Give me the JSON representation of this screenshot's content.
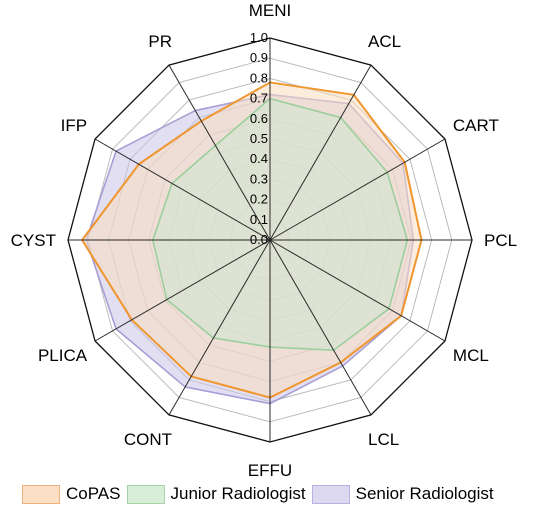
{
  "chart_data": {
    "type": "radar",
    "axes": [
      "MENI",
      "ACL",
      "CART",
      "PCL",
      "MCL",
      "LCL",
      "EFFU",
      "CONT",
      "PLICA",
      "CYST",
      "IFP",
      "PR"
    ],
    "radial_ticks": [
      "0.0",
      "0.1",
      "0.2",
      "0.3",
      "0.4",
      "0.5",
      "0.6",
      "0.7",
      "0.8",
      "0.9",
      "1.0"
    ],
    "rlim": [
      0,
      1
    ],
    "grid": true,
    "legend_position": "bottom",
    "series": [
      {
        "name": "Senior Radiologist",
        "values": [
          0.72,
          0.78,
          0.76,
          0.71,
          0.75,
          0.72,
          0.81,
          0.84,
          0.88,
          0.91,
          0.88,
          0.74
        ],
        "fill": "#c9c4e6",
        "stroke": "#a89fd6"
      },
      {
        "name": "CoPAS",
        "values": [
          0.78,
          0.83,
          0.77,
          0.75,
          0.75,
          0.7,
          0.78,
          0.78,
          0.79,
          0.93,
          0.75,
          0.68
        ],
        "fill": "#f9dcc0",
        "stroke": "#f0962e"
      },
      {
        "name": "Junior Radiologist",
        "values": [
          0.7,
          0.7,
          0.67,
          0.68,
          0.68,
          0.63,
          0.53,
          0.56,
          0.59,
          0.58,
          0.56,
          0.54
        ],
        "fill": "#cfe6cf",
        "stroke": "#9ccf9c"
      }
    ],
    "legend": [
      "CoPAS",
      "Junior Radiologist",
      "Senior Radiologist"
    ]
  }
}
